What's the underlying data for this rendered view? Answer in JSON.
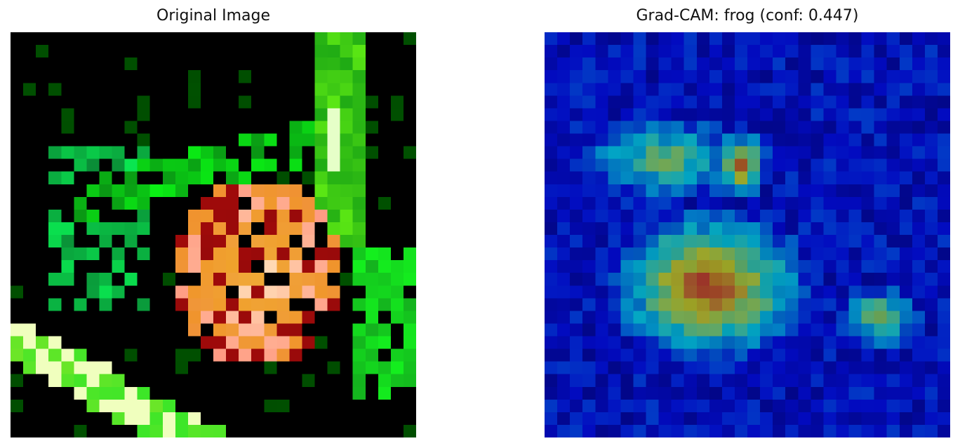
{
  "figure": {
    "left_panel": {
      "title": "Original Image"
    },
    "right_panel": {
      "title": "Grad-CAM: frog (conf: 0.447)"
    }
  },
  "colors": {
    "background": "#ffffff",
    "title_text": "#111111",
    "image_background": "#000000",
    "heatmap_base": "#06107a"
  }
}
